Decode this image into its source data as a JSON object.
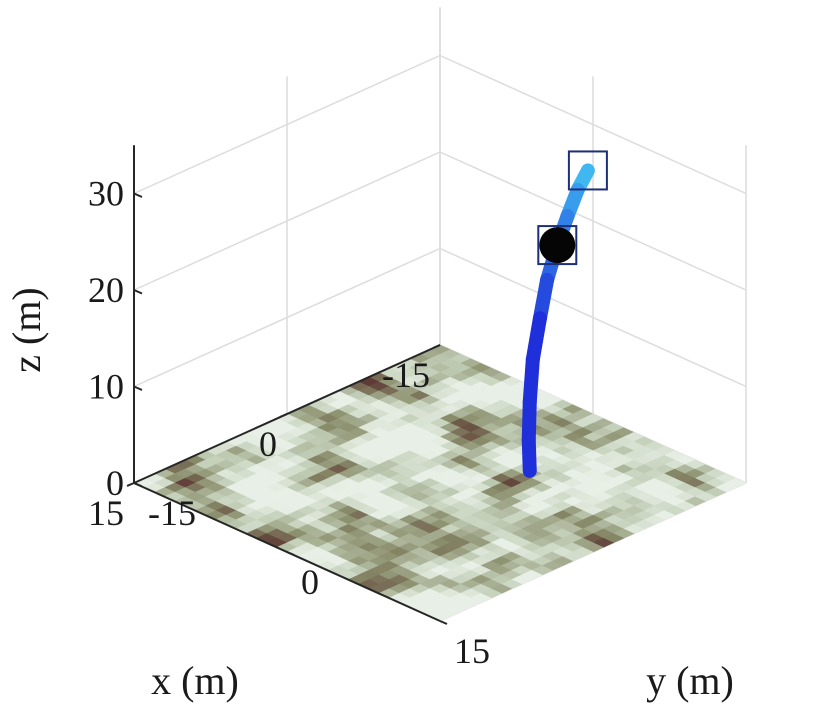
{
  "chart_data": {
    "type": "surface3d",
    "view": "isometric",
    "grid": true,
    "axes": {
      "x": {
        "label": "x (m)",
        "range": [
          -15,
          15
        ],
        "ticks": [
          -15,
          0,
          15
        ],
        "tick_labels": [
          "-15",
          "0",
          "15"
        ]
      },
      "y": {
        "label": "y (m)",
        "range": [
          -15,
          15
        ],
        "ticks": [
          -15,
          0,
          15
        ],
        "tick_labels": [
          "-15",
          "0",
          "15"
        ]
      },
      "z": {
        "label": "z (m)",
        "range": [
          0,
          35
        ],
        "ticks": [
          0,
          10,
          20,
          30
        ],
        "tick_labels": [
          "0",
          "10",
          "20",
          "30"
        ]
      }
    },
    "terrain": {
      "description_colors": {
        "low": "#8a8e6c",
        "mid": "#c8d4bf",
        "high": "#e8efe6",
        "dark": "#5e3b35"
      },
      "grid_size": 30,
      "z": 0
    },
    "trajectory": {
      "points": [
        {
          "x": -15.0,
          "y": -0.5,
          "z": 25.0
        },
        {
          "x": -12.6,
          "y": 0.9,
          "z": 24.8
        },
        {
          "x": -10.2,
          "y": 2.3,
          "z": 23.9
        },
        {
          "x": -7.8,
          "y": 3.7,
          "z": 22.7
        },
        {
          "x": -5.4,
          "y": 5.1,
          "z": 20.9
        },
        {
          "x": -3.3,
          "y": 6.5,
          "z": 18.6
        },
        {
          "x": -1.2,
          "y": 7.9,
          "z": 16.0
        },
        {
          "x": 0.5,
          "y": 9.3,
          "z": 13.1
        },
        {
          "x": 2.0,
          "y": 10.7,
          "z": 10.5
        },
        {
          "x": 3.3,
          "y": 12.1,
          "z": 8.6
        }
      ],
      "start_color": "#3fb8f2",
      "end_color": "#1f2fd9",
      "current_point": {
        "x": -7.8,
        "y": 3.7,
        "z": 22.7
      },
      "markers": [
        {
          "x": -15.0,
          "y": -0.5,
          "z": 25.0
        },
        {
          "x": -7.8,
          "y": 3.7,
          "z": 22.7
        }
      ]
    }
  }
}
